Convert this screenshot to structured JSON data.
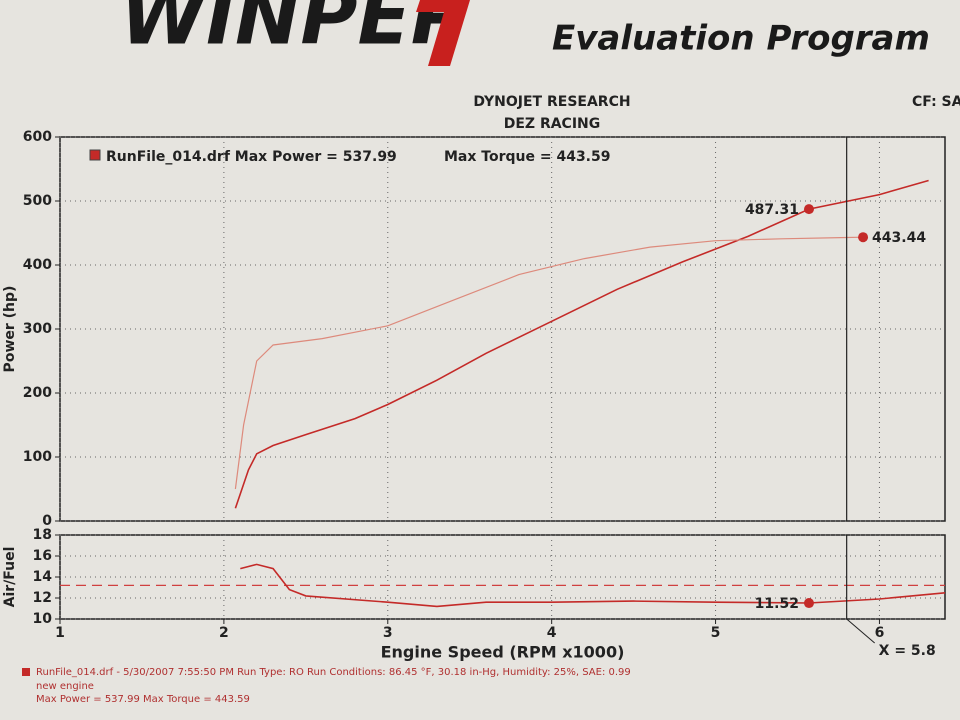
{
  "header": {
    "logo": "WINPEP",
    "program": "Evaluation Program",
    "company": "DYNOJET RESEARCH",
    "shop": "DEZ RACING",
    "cf": "CF: SA"
  },
  "chart_data": [
    {
      "type": "line",
      "y_label": "Power (hp)",
      "xlim": [
        1,
        6.4
      ],
      "xticks": [
        1,
        2,
        3,
        4,
        5,
        6
      ],
      "ylim": [
        0,
        600
      ],
      "yticks": [
        0,
        100,
        200,
        300,
        400,
        500,
        600
      ],
      "grid": true,
      "series": [
        {
          "name": "RunFile_014.drf Max Power = 537.99",
          "color": "#c42a28",
          "x": [
            2.07,
            2.15,
            2.2,
            2.3,
            2.5,
            2.8,
            3.0,
            3.3,
            3.6,
            4.0,
            4.4,
            4.8,
            5.2,
            5.57,
            6.0,
            6.3
          ],
          "values": [
            20,
            80,
            105,
            118,
            135,
            160,
            182,
            220,
            262,
            312,
            362,
            405,
            445,
            487.31,
            510,
            532
          ]
        },
        {
          "name": "Max Torque = 443.59",
          "color": "#dd8a7c",
          "x": [
            2.07,
            2.12,
            2.2,
            2.3,
            2.6,
            3.0,
            3.4,
            3.8,
            4.2,
            4.6,
            5.0,
            5.4,
            5.8,
            5.9
          ],
          "values": [
            50,
            150,
            250,
            275,
            285,
            305,
            345,
            385,
            410,
            428,
            438,
            441,
            443,
            443.44
          ]
        }
      ],
      "markers": [
        {
          "x": 5.57,
          "value": 487.31
        },
        {
          "x": 5.9,
          "value": 443.44
        }
      ]
    },
    {
      "type": "line",
      "y_label": "Air/Fuel",
      "x_label": "Engine Speed (RPM x1000)",
      "xlim": [
        1,
        6.4
      ],
      "xticks": [
        1,
        2,
        3,
        4,
        5,
        6
      ],
      "ylim": [
        10,
        18
      ],
      "yticks": [
        10,
        12,
        14,
        16,
        18
      ],
      "grid": true,
      "reference_line": 13.2,
      "series": [
        {
          "name": "Air/Fuel",
          "color": "#c42a28",
          "x": [
            2.1,
            2.2,
            2.3,
            2.4,
            2.5,
            3.0,
            3.3,
            3.6,
            4.0,
            4.5,
            5.0,
            5.57,
            6.0,
            6.4
          ],
          "values": [
            14.8,
            15.2,
            14.8,
            12.8,
            12.2,
            11.6,
            11.2,
            11.6,
            11.6,
            11.7,
            11.6,
            11.52,
            11.9,
            12.5
          ]
        }
      ],
      "markers": [
        {
          "x": 5.57,
          "value": 11.52
        }
      ],
      "cursor": {
        "value": 5.8,
        "label": "X = 5.8"
      }
    }
  ],
  "footer": {
    "line1": "RunFile_014.drf - 5/30/2007 7:55:50 PM  Run Type: RO  Run Conditions: 86.45 °F, 30.18 in-Hg,  Humidity: 25%,  SAE: 0.99",
    "line2": "new engine",
    "line3": "Max Power = 537.99  Max Torque = 443.59"
  }
}
